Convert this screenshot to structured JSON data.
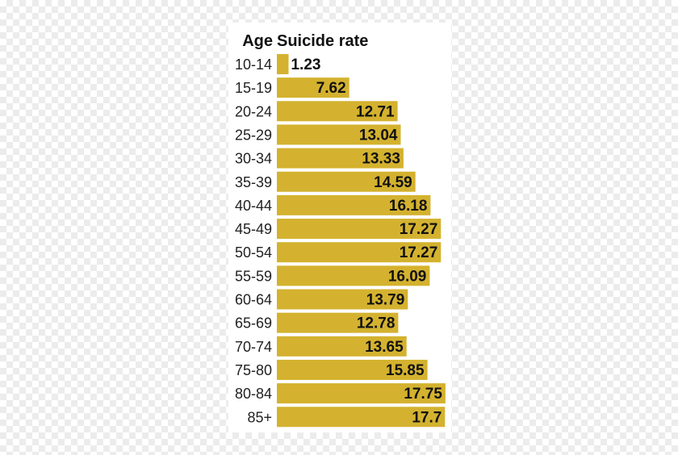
{
  "chart_data": {
    "type": "bar",
    "orientation": "horizontal",
    "header_category": "Age",
    "header_value": "Suicide rate",
    "categories": [
      "10-14",
      "15-19",
      "20-24",
      "25-29",
      "30-34",
      "35-39",
      "40-44",
      "45-49",
      "50-54",
      "55-59",
      "60-64",
      "65-69",
      "70-74",
      "75-80",
      "80-84",
      "85+"
    ],
    "values": [
      1.23,
      7.62,
      12.71,
      13.04,
      13.33,
      14.59,
      16.18,
      17.27,
      17.27,
      16.09,
      13.79,
      12.78,
      13.65,
      15.85,
      17.75,
      17.7
    ],
    "value_labels": [
      "1.23",
      "7.62",
      "12.71",
      "13.04",
      "13.33",
      "14.59",
      "16.18",
      "17.27",
      "17.27",
      "16.09",
      "13.79",
      "12.78",
      "13.65",
      "15.85",
      "17.75",
      "17.7"
    ],
    "bar_color": "#d4b22f",
    "grid": false,
    "legend": "none"
  }
}
